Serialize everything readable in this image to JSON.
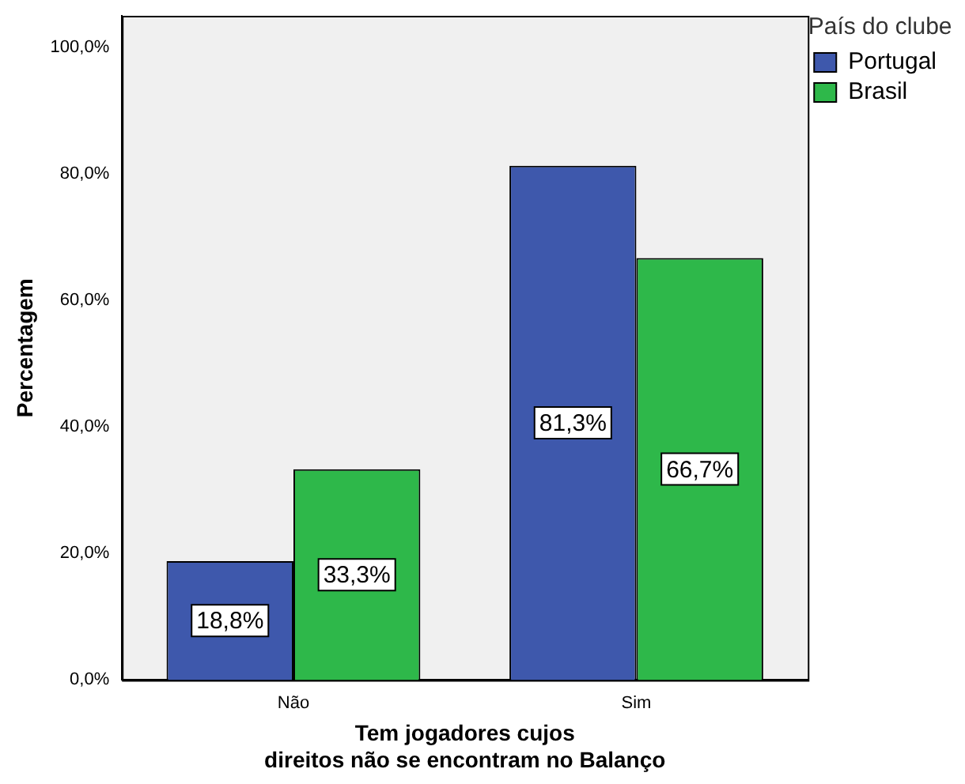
{
  "chart_data": {
    "type": "bar",
    "xlabel": "Tem jogadores cujos direitos não se encontram no Balanço",
    "ylabel": "Percentagem",
    "legend_title": "País do clube",
    "categories": [
      "Não",
      "Sim"
    ],
    "series": [
      {
        "name": "Portugal",
        "color": "#3e58ac",
        "values": [
          18.8,
          81.3
        ],
        "value_labels": [
          "18,8%",
          "81,3%"
        ]
      },
      {
        "name": "Brasil",
        "color": "#2eb84a",
        "values": [
          33.3,
          66.7
        ],
        "value_labels": [
          "33,3%",
          "66,7%"
        ]
      }
    ],
    "ylim": [
      0,
      105
    ],
    "yticks": [
      {
        "value": 0,
        "label": "0,0%"
      },
      {
        "value": 20,
        "label": "20,0%"
      },
      {
        "value": 40,
        "label": "40,0%"
      },
      {
        "value": 60,
        "label": "60,0%"
      },
      {
        "value": 80,
        "label": "80,0%"
      },
      {
        "value": 100,
        "label": "100,0%"
      }
    ],
    "grid": false,
    "legend": "top right"
  }
}
